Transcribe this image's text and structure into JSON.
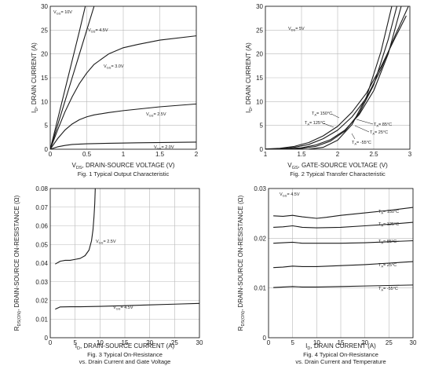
{
  "chart_data": [
    {
      "type": "line",
      "caption": "Fig. 1 Typical Output Characteristic",
      "xlabel": "V_DS, DRAIN-SOURCE VOLTAGE (V)",
      "ylabel": "I_D, DRAIN CURRENT (A)",
      "xlim": [
        0,
        2
      ],
      "ylim": [
        0,
        30
      ],
      "xticks": [
        "0",
        "0.5",
        "1",
        "1.5",
        "2"
      ],
      "yticks": [
        "0",
        "5",
        "10",
        "15",
        "20",
        "25",
        "30"
      ],
      "grid": true,
      "series": [
        {
          "name": "V_GS = 10V",
          "x": [
            0,
            0.1,
            0.2,
            0.3,
            0.4,
            0.48
          ],
          "y": [
            0,
            6.2,
            12.4,
            18.6,
            24.8,
            30
          ]
        },
        {
          "name": "V_GS = 4.5V",
          "x": [
            0,
            0.1,
            0.2,
            0.3,
            0.4,
            0.5,
            0.6
          ],
          "y": [
            0,
            5.0,
            10.0,
            15.0,
            20.0,
            25.0,
            30
          ]
        },
        {
          "name": "V_GS = 3.0V",
          "x": [
            0,
            0.1,
            0.2,
            0.3,
            0.4,
            0.5,
            0.6,
            0.8,
            1.0,
            1.2,
            1.5,
            2.0
          ],
          "y": [
            0,
            4.0,
            7.8,
            11.0,
            13.8,
            16.0,
            17.8,
            20.0,
            21.3,
            22.0,
            22.9,
            23.8
          ]
        },
        {
          "name": "V_GS = 2.5V",
          "x": [
            0,
            0.1,
            0.2,
            0.3,
            0.4,
            0.5,
            0.6,
            0.8,
            1.0,
            1.5,
            2.0
          ],
          "y": [
            0,
            2.2,
            4.0,
            5.3,
            6.2,
            6.8,
            7.2,
            7.7,
            8.1,
            8.9,
            9.5
          ]
        },
        {
          "name": "V_GS = 2.0V",
          "x": [
            0,
            0.1,
            0.2,
            0.3,
            0.5,
            0.8,
            1.2,
            2.0
          ],
          "y": [
            0,
            0.5,
            0.8,
            1.0,
            1.15,
            1.25,
            1.35,
            1.5
          ]
        }
      ],
      "annotations": [
        {
          "sub": "GS",
          "value": "= 10V"
        },
        {
          "sub": "GS",
          "value": "= 4.5V"
        },
        {
          "sub": "GS",
          "value": "= 3.0V"
        },
        {
          "sub": "GS",
          "value": "= 2.5V"
        },
        {
          "sub": "GS",
          "value": "= 2.0V"
        }
      ]
    },
    {
      "type": "line",
      "caption": "Fig. 2 Typical Transfer Characteristic",
      "xlabel": "V_GS, GATE-SOURCE VOLTAGE (V)",
      "ylabel": "I_D, DRAIN CURRENT (A)",
      "xlim": [
        1,
        3
      ],
      "ylim": [
        0,
        30
      ],
      "xticks": [
        "1",
        "1.5",
        "2",
        "2.5",
        "3"
      ],
      "yticks": [
        "0",
        "5",
        "10",
        "15",
        "20",
        "25",
        "30"
      ],
      "grid": true,
      "series": [
        {
          "name": "T_A = 150°C",
          "x": [
            1.0,
            1.2,
            1.4,
            1.6,
            1.8,
            2.0,
            2.2,
            2.4,
            2.6,
            2.8,
            2.95
          ],
          "y": [
            0.05,
            0.2,
            0.6,
            1.4,
            2.8,
            4.8,
            7.8,
            11.8,
            17.3,
            23.5,
            28.0
          ]
        },
        {
          "name": "T_A = 125°C",
          "x": [
            1.0,
            1.2,
            1.4,
            1.6,
            1.8,
            2.0,
            2.2,
            2.4,
            2.6,
            2.8,
            2.98
          ],
          "y": [
            0.03,
            0.12,
            0.4,
            1.0,
            2.2,
            4.0,
            6.8,
            10.8,
            16.8,
            24.0,
            30.0
          ]
        },
        {
          "name": "T_A = 85°C",
          "x": [
            1.1,
            1.3,
            1.5,
            1.7,
            1.9,
            2.1,
            2.3,
            2.5,
            2.7,
            2.88
          ],
          "y": [
            0.02,
            0.1,
            0.3,
            0.9,
            2.0,
            4.0,
            7.3,
            12.3,
            20.0,
            30.0
          ]
        },
        {
          "name": "T_A = 25°C",
          "x": [
            1.3,
            1.5,
            1.7,
            1.9,
            2.1,
            2.3,
            2.5,
            2.7,
            2.82
          ],
          "y": [
            0.02,
            0.15,
            0.6,
            1.7,
            3.8,
            7.6,
            13.5,
            23.0,
            30.0
          ]
        },
        {
          "name": "T_A = -55°C",
          "x": [
            1.6,
            1.8,
            2.0,
            2.2,
            2.4,
            2.6,
            2.75
          ],
          "y": [
            0.02,
            0.4,
            1.9,
            5.2,
            11.0,
            20.5,
            30.0
          ]
        }
      ],
      "annotations": [
        {
          "sub": "DS",
          "value": "= 5V"
        },
        {
          "sub": "A",
          "value": "= 150°C"
        },
        {
          "sub": "A",
          "value": "= 125°C"
        },
        {
          "sub": "A",
          "value": "= 85°C"
        },
        {
          "sub": "A",
          "value": "= 25°C"
        },
        {
          "sub": "A",
          "value": "= -55°C"
        }
      ]
    },
    {
      "type": "line",
      "caption_lines": [
        "Fig. 3 Typical On-Resistance",
        "vs. Drain Current and Gate Voltage"
      ],
      "xlabel": "I_D, DRAIN-SOURCE CURRENT (A)",
      "ylabel": "R_DS(ON), DRAIN-SOURCE ON-RESISTANCE (Ω)",
      "xlim": [
        0,
        30
      ],
      "ylim": [
        0,
        0.08
      ],
      "xticks": [
        "0",
        "5",
        "10",
        "15",
        "20",
        "25",
        "30"
      ],
      "yticks": [
        "0",
        "0.01",
        "0.02",
        "0.03",
        "0.04",
        "0.05",
        "0.06",
        "0.07",
        "0.08"
      ],
      "grid": true,
      "series": [
        {
          "name": "V_GS = 2.5V",
          "x": [
            1,
            2,
            3,
            4,
            5,
            6,
            7,
            7.8,
            8.3,
            8.6,
            8.8,
            8.95,
            9.05
          ],
          "y": [
            0.0395,
            0.041,
            0.0415,
            0.0415,
            0.042,
            0.0425,
            0.044,
            0.047,
            0.052,
            0.058,
            0.065,
            0.072,
            0.08
          ]
        },
        {
          "name": "V_GS = 4.5V",
          "x": [
            1,
            2,
            4,
            6,
            8,
            10,
            15,
            20,
            25,
            30
          ],
          "y": [
            0.0153,
            0.0165,
            0.0166,
            0.0166,
            0.0167,
            0.0168,
            0.0172,
            0.0176,
            0.018,
            0.0184
          ]
        }
      ],
      "annotations": [
        {
          "sub": "GS",
          "value": "= 2.5V"
        },
        {
          "sub": "GS",
          "value": "= 4.5V"
        }
      ]
    },
    {
      "type": "line",
      "caption_lines": [
        "Fig. 4 Typical On-Resistance",
        "vs. Drain Current and Temperature"
      ],
      "xlabel": "I_D, DRAIN CURRENT (A)",
      "ylabel": "R_DS(ON), DRAIN-SOURCE ON-RESISTANCE (Ω)",
      "xlim": [
        0,
        30
      ],
      "ylim": [
        0,
        0.03
      ],
      "xticks": [
        "0",
        "5",
        "10",
        "15",
        "20",
        "25",
        "30"
      ],
      "yticks": [
        "0",
        "0.01",
        "0.02",
        "0.03"
      ],
      "grid": true,
      "series": [
        {
          "name": "T_A = 150°C",
          "x": [
            1,
            3,
            5,
            7,
            10,
            12,
            15,
            20,
            25,
            30
          ],
          "y": [
            0.0245,
            0.0244,
            0.0246,
            0.0243,
            0.024,
            0.0242,
            0.0246,
            0.0251,
            0.0256,
            0.0262
          ]
        },
        {
          "name": "T_A = 125°C",
          "x": [
            1,
            3,
            5,
            7,
            10,
            15,
            20,
            25,
            30
          ],
          "y": [
            0.0222,
            0.0223,
            0.0225,
            0.0222,
            0.0221,
            0.0222,
            0.0225,
            0.0228,
            0.0232
          ]
        },
        {
          "name": "T_A = 85°C",
          "x": [
            1,
            3,
            5,
            7,
            10,
            15,
            20,
            25,
            30
          ],
          "y": [
            0.019,
            0.0191,
            0.0192,
            0.019,
            0.019,
            0.019,
            0.0191,
            0.0193,
            0.0195
          ]
        },
        {
          "name": "T_A = 25°C",
          "x": [
            1,
            3,
            5,
            7,
            10,
            15,
            20,
            25,
            30
          ],
          "y": [
            0.0141,
            0.0142,
            0.0144,
            0.0143,
            0.0143,
            0.0145,
            0.0147,
            0.015,
            0.0153
          ]
        },
        {
          "name": "T_A = -55°C",
          "x": [
            1,
            3,
            5,
            7,
            10,
            15,
            20,
            25,
            30
          ],
          "y": [
            0.0101,
            0.0102,
            0.0103,
            0.0102,
            0.0102,
            0.0103,
            0.0104,
            0.0105,
            0.0106
          ]
        }
      ],
      "annotations": [
        {
          "sub": "GS",
          "value": "= 4.5V"
        },
        {
          "sub": "A",
          "value": "= 150°C"
        },
        {
          "sub": "A",
          "value": "= 125°C"
        },
        {
          "sub": "A",
          "value": "= 85°C"
        },
        {
          "sub": "A",
          "value": "= 25°C"
        },
        {
          "sub": "A",
          "value": "= -55°C"
        }
      ]
    }
  ]
}
